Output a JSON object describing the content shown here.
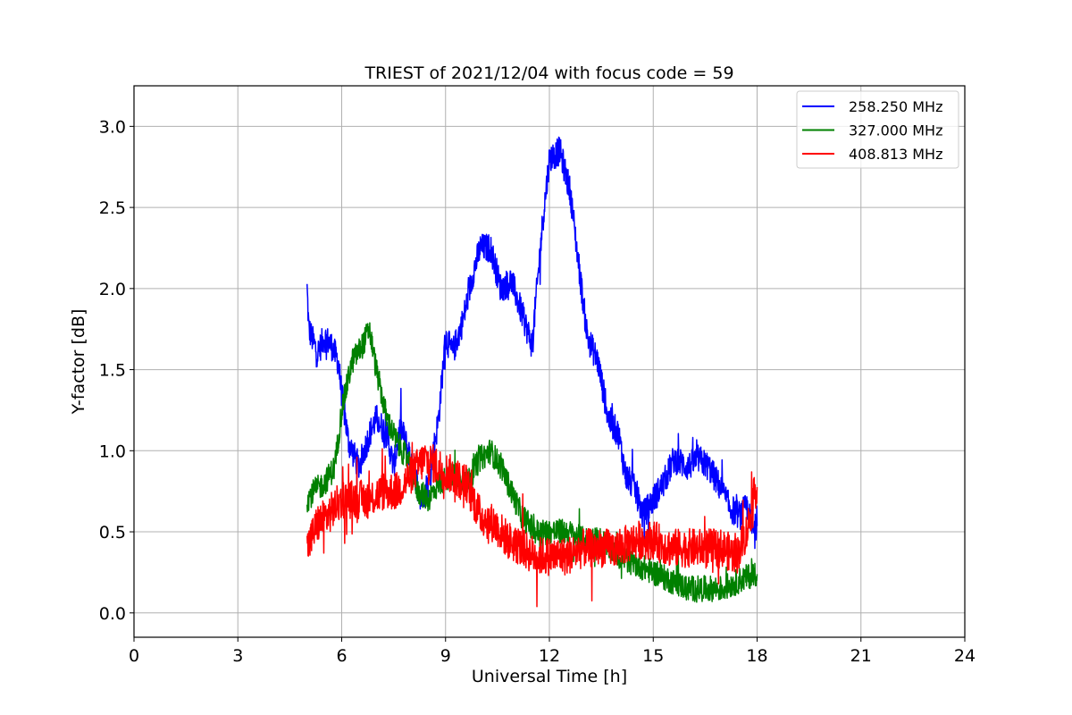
{
  "chart_data": {
    "type": "line",
    "title": "TRIEST of 2021/12/04 with focus code = 59",
    "xlabel": "Universal Time [h]",
    "ylabel": "Y-factor [dB]",
    "xlim": [
      0,
      24
    ],
    "ylim": [
      -0.15,
      3.25
    ],
    "xticks": [
      0,
      3,
      6,
      9,
      12,
      15,
      18,
      21,
      24
    ],
    "yticks": [
      0.0,
      0.5,
      1.0,
      1.5,
      2.0,
      2.5,
      3.0
    ],
    "ytick_labels": [
      "0.0",
      "0.5",
      "1.0",
      "1.5",
      "2.0",
      "2.5",
      "3.0"
    ],
    "grid": true,
    "legend_position": "top-right",
    "series": [
      {
        "name": "258.250 MHz",
        "color": "#0000ff",
        "noise": 0.09,
        "x": [
          5.0,
          5.05,
          5.3,
          5.5,
          5.7,
          5.9,
          6.0,
          6.2,
          6.5,
          6.8,
          7.0,
          7.3,
          7.5,
          7.7,
          8.0,
          8.3,
          8.5,
          8.8,
          9.0,
          9.2,
          9.5,
          9.8,
          10.0,
          10.3,
          10.6,
          10.9,
          11.2,
          11.5,
          11.8,
          12.0,
          12.3,
          12.6,
          12.9,
          13.1,
          13.4,
          13.7,
          14.0,
          14.2,
          14.5,
          14.7,
          15.0,
          15.3,
          15.6,
          16.0,
          16.3,
          16.6,
          17.0,
          17.2,
          17.5,
          17.7,
          17.9,
          18.0
        ],
        "y": [
          2.0,
          1.75,
          1.6,
          1.7,
          1.65,
          1.55,
          1.35,
          1.05,
          0.9,
          1.1,
          1.2,
          1.1,
          0.9,
          1.15,
          0.95,
          0.7,
          0.8,
          1.2,
          1.7,
          1.6,
          1.8,
          2.1,
          2.25,
          2.25,
          2.0,
          2.05,
          1.85,
          1.65,
          2.4,
          2.8,
          2.85,
          2.6,
          2.05,
          1.7,
          1.55,
          1.2,
          1.1,
          0.85,
          0.75,
          0.6,
          0.7,
          0.8,
          0.95,
          0.9,
          0.95,
          0.9,
          0.75,
          0.65,
          0.6,
          0.65,
          0.5,
          0.55
        ]
      },
      {
        "name": "327.000 MHz",
        "color": "#008000",
        "noise": 0.08,
        "x": [
          5.0,
          5.2,
          5.5,
          5.8,
          6.0,
          6.3,
          6.6,
          6.8,
          7.0,
          7.3,
          7.6,
          7.9,
          8.2,
          8.5,
          8.8,
          9.2,
          9.6,
          10.0,
          10.3,
          10.6,
          10.9,
          11.2,
          11.6,
          12.0,
          12.5,
          13.0,
          13.5,
          14.0,
          14.5,
          15.0,
          15.5,
          16.0,
          16.5,
          17.0,
          17.5,
          18.0
        ],
        "y": [
          0.7,
          0.75,
          0.8,
          0.9,
          1.25,
          1.55,
          1.65,
          1.75,
          1.5,
          1.2,
          1.05,
          0.95,
          0.75,
          0.7,
          0.8,
          0.85,
          0.8,
          0.95,
          1.0,
          0.9,
          0.75,
          0.6,
          0.5,
          0.5,
          0.5,
          0.45,
          0.45,
          0.35,
          0.3,
          0.25,
          0.2,
          0.15,
          0.15,
          0.15,
          0.2,
          0.25
        ]
      },
      {
        "name": "408.813 MHz",
        "color": "#ff0000",
        "noise": 0.12,
        "x": [
          5.0,
          5.3,
          5.6,
          6.0,
          6.4,
          6.8,
          7.2,
          7.6,
          8.0,
          8.4,
          8.8,
          9.2,
          9.6,
          10.0,
          10.4,
          10.8,
          11.2,
          11.6,
          12.0,
          12.5,
          13.0,
          13.5,
          14.0,
          14.5,
          15.0,
          15.5,
          16.0,
          16.5,
          17.0,
          17.4,
          17.7,
          17.9,
          18.0
        ],
        "y": [
          0.4,
          0.55,
          0.6,
          0.7,
          0.7,
          0.7,
          0.75,
          0.75,
          0.85,
          0.95,
          0.9,
          0.85,
          0.8,
          0.6,
          0.55,
          0.45,
          0.4,
          0.35,
          0.35,
          0.35,
          0.4,
          0.4,
          0.4,
          0.45,
          0.45,
          0.4,
          0.4,
          0.4,
          0.4,
          0.35,
          0.5,
          0.7,
          0.8
        ]
      }
    ]
  }
}
